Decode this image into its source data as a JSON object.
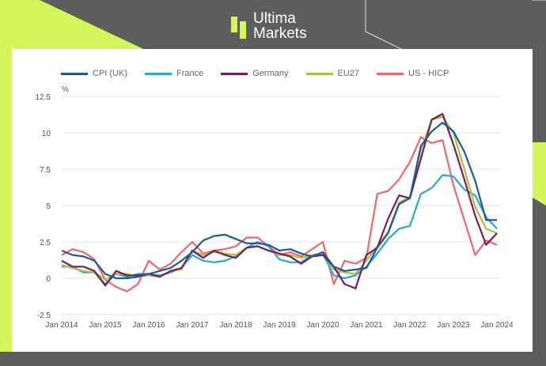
{
  "brand": {
    "name_line1": "Ultima",
    "name_line2": "Markets",
    "colors": {
      "lime": "#d4f55c",
      "dark": "#5e5e5e"
    }
  },
  "chart_data": {
    "type": "line",
    "title": "",
    "ylabel": "%",
    "xlabel": "",
    "ylim": [
      -2.5,
      12.5
    ],
    "yticks": [
      -2.5,
      0,
      2.5,
      5,
      7.5,
      10,
      12.5
    ],
    "ytick_labels": [
      "-2.5",
      "0",
      "2.5",
      "5",
      "7.5",
      "10",
      "12.5"
    ],
    "xlim": [
      "2014-01",
      "2024-01"
    ],
    "xtick_labels": [
      "Jan 2014",
      "Jan 2015",
      "Jan 2016",
      "Jan 2017",
      "Jan 2018",
      "Jan 2019",
      "Jan 2020",
      "Jan 2021",
      "Jan 2022",
      "Jan 2023",
      "Jan 2024"
    ],
    "grid": "horizontal",
    "legend": "top",
    "x": [
      "2014-01",
      "2014-04",
      "2014-07",
      "2014-10",
      "2015-01",
      "2015-04",
      "2015-07",
      "2015-10",
      "2016-01",
      "2016-04",
      "2016-07",
      "2016-10",
      "2017-01",
      "2017-04",
      "2017-07",
      "2017-10",
      "2018-01",
      "2018-04",
      "2018-07",
      "2018-10",
      "2019-01",
      "2019-04",
      "2019-07",
      "2019-10",
      "2020-01",
      "2020-04",
      "2020-07",
      "2020-10",
      "2021-01",
      "2021-04",
      "2021-07",
      "2021-10",
      "2022-01",
      "2022-04",
      "2022-07",
      "2022-10",
      "2023-01",
      "2023-04",
      "2023-07",
      "2023-10",
      "2024-01"
    ],
    "series": [
      {
        "name": "CPI (UK)",
        "color": "#1f5a96",
        "values": [
          1.9,
          1.6,
          1.5,
          1.2,
          0.3,
          0.0,
          0.0,
          0.1,
          0.3,
          0.5,
          0.7,
          1.2,
          1.8,
          2.6,
          2.9,
          3.0,
          2.7,
          2.4,
          2.4,
          2.3,
          1.9,
          2.0,
          1.7,
          1.5,
          1.8,
          0.8,
          0.5,
          0.6,
          0.7,
          2.1,
          3.1,
          5.1,
          5.5,
          9.1,
          10.1,
          10.7,
          10.1,
          8.7,
          6.7,
          4.0,
          4.0
        ]
      },
      {
        "name": "France",
        "color": "#2aa6d6",
        "values": [
          0.8,
          0.8,
          0.4,
          0.4,
          -0.4,
          0.3,
          0.1,
          0.3,
          0.3,
          0.2,
          0.4,
          0.7,
          1.6,
          1.2,
          1.1,
          1.2,
          1.5,
          2.1,
          2.5,
          2.2,
          1.3,
          1.1,
          1.1,
          1.6,
          1.7,
          0.2,
          0.0,
          0.2,
          0.8,
          1.7,
          2.7,
          3.4,
          3.6,
          5.8,
          6.2,
          7.1,
          7.0,
          6.1,
          5.7,
          4.2,
          3.4
        ]
      },
      {
        "name": "Germany",
        "color": "#7d1a5c",
        "values": [
          1.2,
          0.8,
          0.8,
          0.5,
          -0.5,
          0.5,
          0.2,
          0.2,
          0.3,
          0.1,
          0.5,
          0.7,
          1.9,
          1.4,
          1.9,
          1.6,
          1.4,
          2.1,
          2.2,
          1.9,
          1.7,
          1.5,
          1.0,
          1.5,
          1.6,
          0.8,
          -0.4,
          -0.7,
          1.6,
          2.1,
          4.1,
          5.7,
          5.5,
          8.2,
          10.9,
          11.3,
          9.2,
          6.8,
          4.3,
          2.3,
          3.1
        ]
      },
      {
        "name": "EU27",
        "color": "#a8c23a",
        "values": [
          0.9,
          0.7,
          0.5,
          0.4,
          -0.1,
          0.3,
          0.3,
          0.1,
          0.2,
          0.1,
          0.5,
          0.6,
          1.9,
          1.6,
          1.8,
          1.7,
          1.6,
          2.1,
          2.2,
          1.9,
          1.6,
          1.6,
          1.4,
          1.6,
          1.7,
          0.6,
          0.4,
          0.3,
          1.2,
          2.2,
          3.2,
          5.2,
          5.6,
          8.8,
          10.9,
          11.1,
          10.0,
          7.5,
          4.9,
          3.4,
          3.1
        ]
      },
      {
        "name": "US - HICP",
        "color": "#f5646a",
        "values": [
          1.6,
          2.0,
          1.8,
          1.3,
          -0.1,
          -0.6,
          -0.9,
          -0.4,
          1.2,
          0.6,
          1.0,
          1.8,
          2.5,
          1.7,
          1.9,
          2.0,
          2.2,
          2.8,
          2.8,
          2.2,
          1.6,
          1.8,
          1.5,
          2.0,
          2.5,
          -0.4,
          1.2,
          1.0,
          1.4,
          5.8,
          6.0,
          6.8,
          8.0,
          9.7,
          9.3,
          9.5,
          6.4,
          4.0,
          1.6,
          2.6,
          2.3
        ]
      }
    ]
  }
}
